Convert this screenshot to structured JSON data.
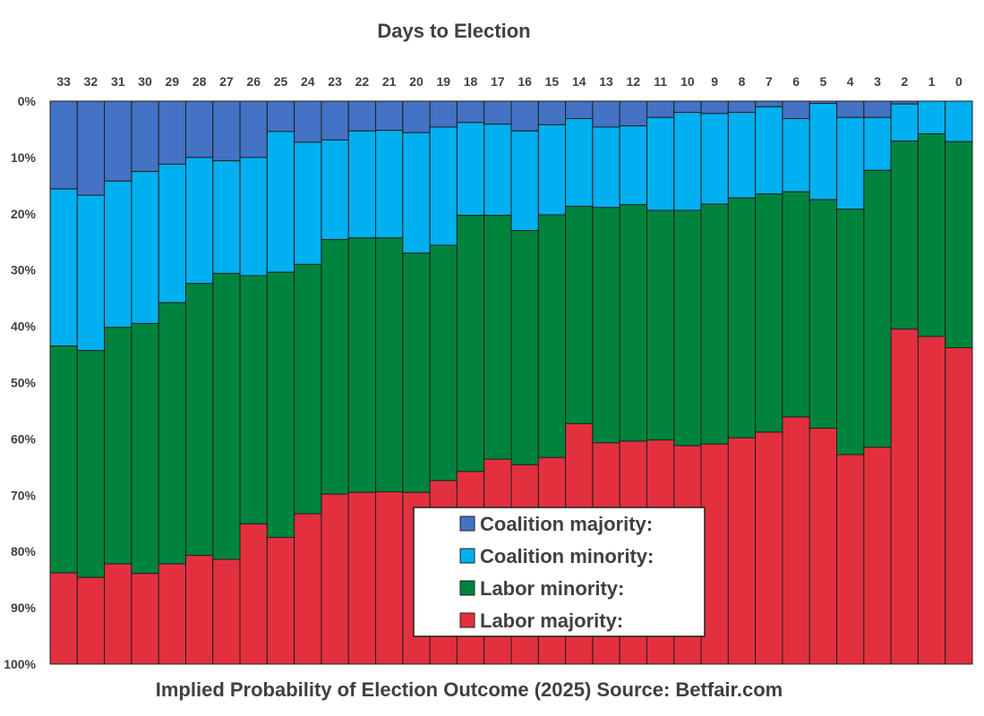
{
  "chart_data": {
    "type": "bar",
    "stacked": true,
    "orientation": "vertical",
    "title": "Days to Election",
    "caption": "Implied Probability of Election Outcome (2025) Source: Betfair.com",
    "categories": [
      "33",
      "32",
      "31",
      "30",
      "29",
      "28",
      "27",
      "26",
      "25",
      "24",
      "23",
      "22",
      "21",
      "20",
      "19",
      "18",
      "17",
      "16",
      "15",
      "14",
      "13",
      "12",
      "11",
      "10",
      "9",
      "8",
      "7",
      "6",
      "5",
      "4",
      "3",
      "2",
      "1",
      "0"
    ],
    "ylim": [
      0,
      100
    ],
    "y_direction": "down",
    "ytick_labels": [
      "0%",
      "10%",
      "20%",
      "30%",
      "40%",
      "50%",
      "60%",
      "70%",
      "80%",
      "90%",
      "100%"
    ],
    "legend_position": "bottom-center",
    "series": [
      {
        "name": "Coalition majority:",
        "color": "#4472C4",
        "values": [
          15.6,
          16.7,
          14.2,
          12.5,
          11.2,
          10.0,
          10.6,
          10.0,
          5.4,
          7.3,
          6.9,
          5.3,
          5.2,
          5.6,
          4.6,
          3.8,
          4.1,
          5.3,
          4.2,
          3.1,
          4.6,
          4.4,
          2.9,
          2.0,
          2.2,
          2.0,
          1.0,
          3.1,
          0.4,
          2.9,
          2.9,
          0.5,
          0,
          0
        ]
      },
      {
        "name": "Coalition minority:",
        "color": "#00B0F0",
        "values": [
          27.9,
          27.6,
          26.0,
          27.0,
          24.6,
          22.4,
          20.0,
          21.0,
          25.0,
          21.7,
          17.7,
          19.0,
          19.1,
          21.4,
          21.0,
          16.5,
          16.2,
          17.7,
          16.0,
          15.6,
          14.3,
          14.0,
          16.5,
          17.4,
          16.1,
          15.2,
          15.5,
          13.0,
          17.1,
          16.3,
          9.4,
          6.6,
          5.8,
          7.2
        ]
      },
      {
        "name": "Labor minority:",
        "color": "#00843D",
        "values": [
          40.3,
          40.3,
          42.0,
          44.4,
          46.4,
          48.3,
          50.8,
          44.1,
          47.1,
          44.3,
          45.2,
          45.2,
          45.1,
          42.5,
          41.8,
          45.5,
          43.3,
          41.6,
          43.1,
          38.6,
          41.8,
          42.0,
          40.8,
          41.8,
          42.6,
          42.6,
          42.3,
          40.0,
          40.6,
          43.6,
          49.2,
          33.4,
          36.0,
          36.6
        ]
      },
      {
        "name": "Labor majority:",
        "color": "#E3303F",
        "values": [
          16.2,
          15.4,
          17.8,
          16.1,
          17.8,
          19.3,
          18.6,
          24.9,
          22.5,
          26.7,
          30.2,
          30.5,
          30.6,
          30.5,
          32.6,
          34.2,
          36.4,
          35.4,
          36.7,
          42.7,
          39.3,
          39.6,
          39.8,
          38.8,
          39.1,
          40.2,
          41.2,
          43.9,
          41.9,
          37.2,
          38.5,
          59.5,
          58.2,
          56.2
        ]
      }
    ]
  }
}
